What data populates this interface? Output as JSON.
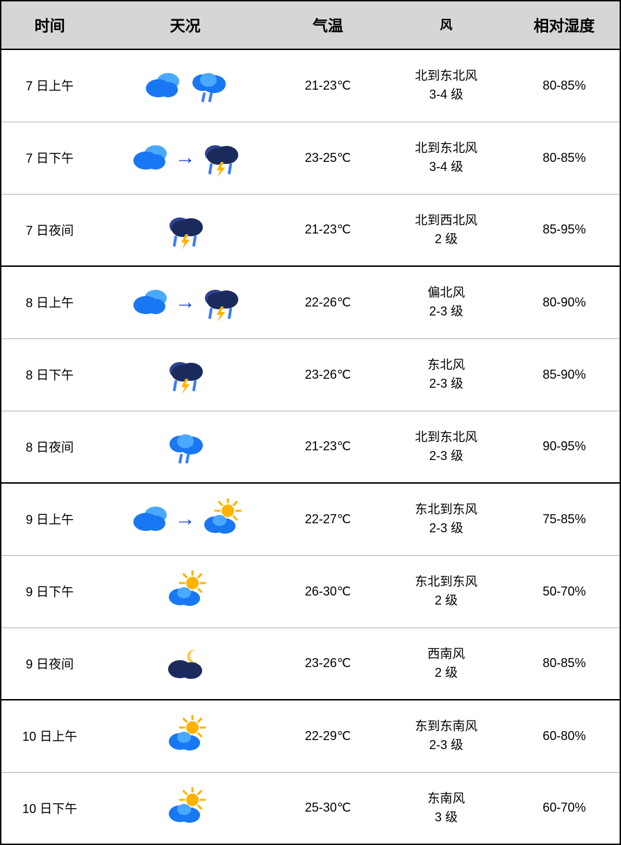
{
  "columns": [
    "时间",
    "天况",
    "气温",
    "风",
    "相对湿度"
  ],
  "icon_colors": {
    "cloud_light": "#4aa8ff",
    "cloud_dark": "#1877f2",
    "storm_cloud": "#1a2a5c",
    "storm_cloud_hi": "#2e4490",
    "rain": "#3b7cff",
    "lightning": "#ffb300",
    "sun": "#ffb300",
    "moon": "#ffc94a",
    "night_cloud": "#1a2a5c",
    "arrow": "#1b3fd6"
  },
  "rows": [
    {
      "time": "7 日上午",
      "icons": [
        "cloudy",
        "light-rain"
      ],
      "temp": "21-23℃",
      "wind_dir": "北到东北风",
      "wind_level": "3-4 级",
      "humidity": "80-85%",
      "day_start": true
    },
    {
      "time": "7 日下午",
      "icons": [
        "cloudy",
        "arrow",
        "thunderstorm"
      ],
      "temp": "23-25℃",
      "wind_dir": "北到东北风",
      "wind_level": "3-4 级",
      "humidity": "80-85%"
    },
    {
      "time": "7 日夜间",
      "icons": [
        "thunderstorm"
      ],
      "temp": "21-23℃",
      "wind_dir": "北到西北风",
      "wind_level": "2 级",
      "humidity": "85-95%"
    },
    {
      "time": "8 日上午",
      "icons": [
        "cloudy",
        "arrow",
        "thunderstorm"
      ],
      "temp": "22-26℃",
      "wind_dir": "偏北风",
      "wind_level": "2-3 级",
      "humidity": "80-90%",
      "day_start": true
    },
    {
      "time": "8 日下午",
      "icons": [
        "thunderstorm"
      ],
      "temp": "23-26℃",
      "wind_dir": "东北风",
      "wind_level": "2-3 级",
      "humidity": "85-90%"
    },
    {
      "time": "8 日夜间",
      "icons": [
        "light-rain"
      ],
      "temp": "21-23℃",
      "wind_dir": "北到东北风",
      "wind_level": "2-3 级",
      "humidity": "90-95%"
    },
    {
      "time": "9 日上午",
      "icons": [
        "cloudy",
        "arrow",
        "partly-sunny"
      ],
      "temp": "22-27℃",
      "wind_dir": "东北到东风",
      "wind_level": "2-3 级",
      "humidity": "75-85%",
      "day_start": true
    },
    {
      "time": "9 日下午",
      "icons": [
        "partly-sunny"
      ],
      "temp": "26-30℃",
      "wind_dir": "东北到东风",
      "wind_level": "2 级",
      "humidity": "50-70%"
    },
    {
      "time": "9 日夜间",
      "icons": [
        "night-cloudy"
      ],
      "temp": "23-26℃",
      "wind_dir": "西南风",
      "wind_level": "2 级",
      "humidity": "80-85%"
    },
    {
      "time": "10 日上午",
      "icons": [
        "partly-sunny"
      ],
      "temp": "22-29℃",
      "wind_dir": "东到东南风",
      "wind_level": "2-3 级",
      "humidity": "60-80%",
      "day_start": true
    },
    {
      "time": "10 日下午",
      "icons": [
        "partly-sunny"
      ],
      "temp": "25-30℃",
      "wind_dir": "东南风",
      "wind_level": "3 级",
      "humidity": "60-70%"
    }
  ]
}
